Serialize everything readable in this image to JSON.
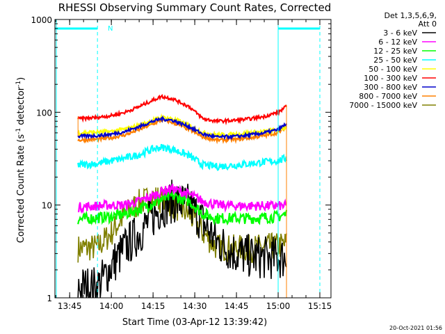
{
  "chart_data": {
    "type": "line",
    "title": "RHESSI Observing Summary Count Rates, Corrected",
    "xlabel": "Start Time (03-Apr-12 13:39:42)",
    "ylabel_main": "Corrected Count Rate (s",
    "ylabel_sup1": "-1",
    "ylabel_mid": " detector",
    "ylabel_sup2": "-1",
    "ylabel_end": ")",
    "yscale": "log",
    "ylim": [
      1,
      1000
    ],
    "xlim": [
      "13:39:42",
      "15:19:00"
    ],
    "x_ticks": [
      "13:45",
      "14:00",
      "14:15",
      "14:30",
      "14:45",
      "15:00",
      "15:15"
    ],
    "y_ticks": [
      "1",
      "10",
      "100",
      "1000"
    ],
    "legend_header": [
      "Det 1,3,5,6,9,",
      "Att 0"
    ],
    "legend_position": "right",
    "night_flag_label": "N",
    "footer_date": "20-Oct-2021 01:56",
    "data_window": [
      "13:48",
      "15:03"
    ],
    "shape_times": [
      "13:48",
      "13:55",
      "14:00",
      "14:05",
      "14:10",
      "14:15",
      "14:18",
      "14:22",
      "14:28",
      "14:33",
      "14:38",
      "14:45",
      "14:50",
      "14:55",
      "15:00",
      "15:03"
    ],
    "series": [
      {
        "name": "3 - 6 keV",
        "color": "#000000",
        "values": [
          1.3,
          1.3,
          2.2,
          3.5,
          5.0,
          7.5,
          9.5,
          11.0,
          10.0,
          6.5,
          4.0,
          3.0,
          2.8,
          2.7,
          2.7,
          2.7
        ]
      },
      {
        "name": "6 - 12 keV",
        "color": "#ff00ff",
        "values": [
          9.5,
          9.8,
          10.0,
          10.0,
          11.0,
          12.5,
          14.0,
          15.0,
          13.0,
          11.0,
          10.0,
          9.8,
          9.8,
          9.8,
          9.8,
          9.8
        ]
      },
      {
        "name": "12 - 25 keV",
        "color": "#00ff00",
        "values": [
          7.0,
          7.3,
          7.5,
          8.0,
          9.0,
          10.5,
          11.5,
          12.5,
          11.0,
          8.0,
          7.2,
          7.2,
          7.2,
          7.3,
          7.5,
          8.0
        ]
      },
      {
        "name": "25 - 50 keV",
        "color": "#00ffff",
        "values": [
          27,
          28,
          30,
          32,
          35,
          40,
          42,
          40,
          34,
          27,
          26,
          27,
          28,
          29,
          30,
          32
        ]
      },
      {
        "name": "50 - 100 keV",
        "color": "#ffff00",
        "values": [
          60,
          61,
          62,
          66,
          72,
          82,
          88,
          85,
          72,
          60,
          57,
          58,
          60,
          62,
          65,
          70
        ]
      },
      {
        "name": "100 - 300 keV",
        "color": "#ff0000",
        "values": [
          85,
          88,
          92,
          100,
          115,
          135,
          148,
          140,
          115,
          85,
          80,
          82,
          85,
          90,
          100,
          115
        ]
      },
      {
        "name": "300 - 800 keV",
        "color": "#0000cc",
        "values": [
          55,
          56,
          58,
          62,
          70,
          80,
          85,
          82,
          70,
          58,
          54,
          55,
          57,
          60,
          65,
          75
        ]
      },
      {
        "name": "800 - 7000 keV",
        "color": "#ff8000",
        "values": [
          50,
          51,
          53,
          57,
          65,
          75,
          82,
          78,
          65,
          54,
          50,
          51,
          53,
          56,
          60,
          70
        ]
      },
      {
        "name": "7000 - 15000 keV",
        "color": "#808000",
        "values": [
          3.4,
          3.5,
          5.0,
          8.0,
          10.5,
          12.0,
          11.5,
          10.0,
          8.0,
          5.0,
          3.5,
          3.4,
          3.4,
          3.5,
          3.6,
          3.8
        ]
      }
    ],
    "colors": {
      "background": "#ffffff",
      "axes": "#000000",
      "flag": "#00ffff"
    }
  }
}
